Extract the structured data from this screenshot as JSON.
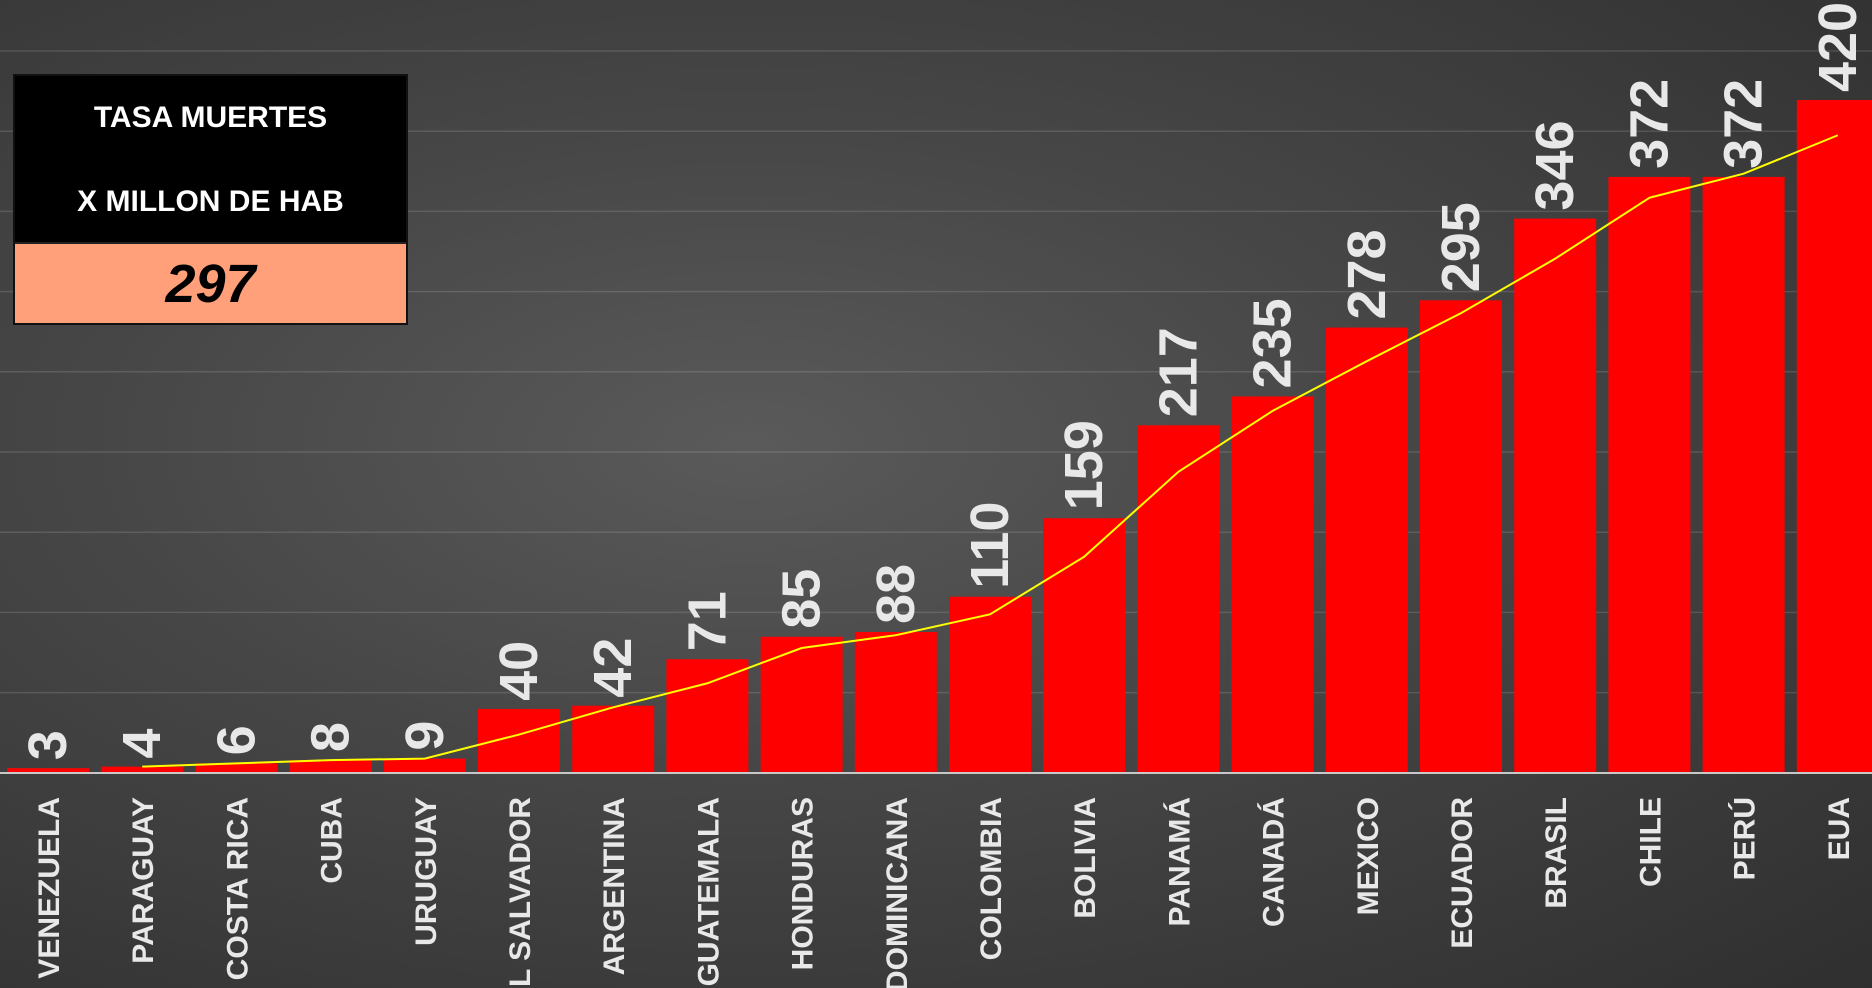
{
  "kpi": {
    "line1": "TASA MUERTES",
    "line2": "X MILLON DE HAB",
    "value": "297"
  },
  "colors": {
    "bar": "#ff0000",
    "trend": "#ffff00",
    "kpi_value_bg": "#ffa07a",
    "label": "#e8e8e8"
  },
  "chart_data": {
    "type": "bar",
    "title": "",
    "xlabel": "",
    "ylabel": "",
    "ylim": [
      0,
      420
    ],
    "grid": true,
    "categories": [
      "VENEZUELA",
      "PARAGUAY",
      "COSTA RICA",
      "CUBA",
      "URUGUAY",
      "EL SALVADOR",
      "ARGENTINA",
      "GUATEMALA",
      "HONDURAS",
      "DOMINICANA",
      "COLOMBIA",
      "BOLIVIA",
      "PANAMÁ",
      "CANADÁ",
      "MEXICO",
      "ECUADOR",
      "BRASIL",
      "CHILE",
      "PERÚ",
      "EUA"
    ],
    "values": [
      3,
      4,
      6,
      8,
      9,
      40,
      42,
      71,
      85,
      88,
      110,
      159,
      217,
      235,
      278,
      295,
      346,
      372,
      372,
      420
    ],
    "trend_values": [
      null,
      4,
      6,
      8,
      9,
      24,
      41,
      56,
      78,
      86,
      99,
      135,
      188,
      226,
      257,
      287,
      321,
      359,
      374,
      398
    ]
  }
}
